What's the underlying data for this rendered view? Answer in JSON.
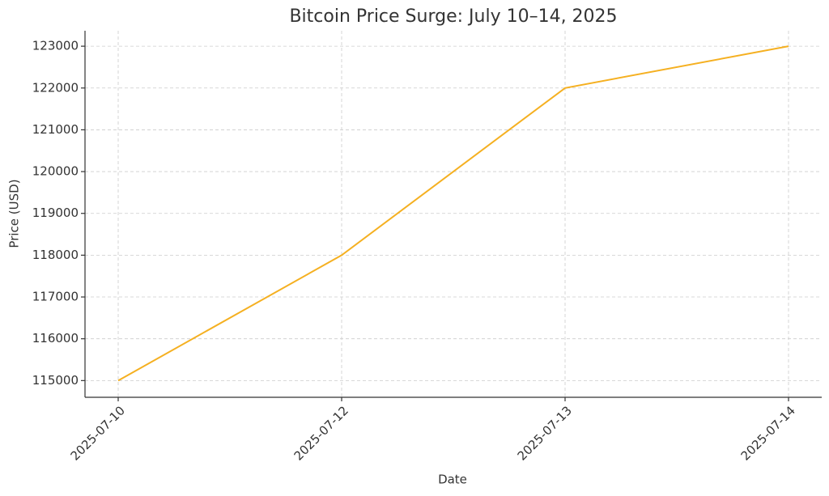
{
  "chart_data": {
    "type": "line",
    "title": "Bitcoin Price Surge: July 10–14, 2025",
    "x_label": "Date",
    "y_label": "Price (USD)",
    "categories": [
      "2025-07-10",
      "2025-07-12",
      "2025-07-13",
      "2025-07-14"
    ],
    "series": [
      {
        "name": "Bitcoin",
        "color": "#f5b021",
        "values": [
          115000,
          118000,
          122000,
          123000
        ]
      }
    ],
    "ylim": [
      114600,
      123370
    ],
    "yticks": [
      115000,
      116000,
      117000,
      118000,
      119000,
      120000,
      121000,
      122000,
      123000
    ],
    "grid": true
  }
}
